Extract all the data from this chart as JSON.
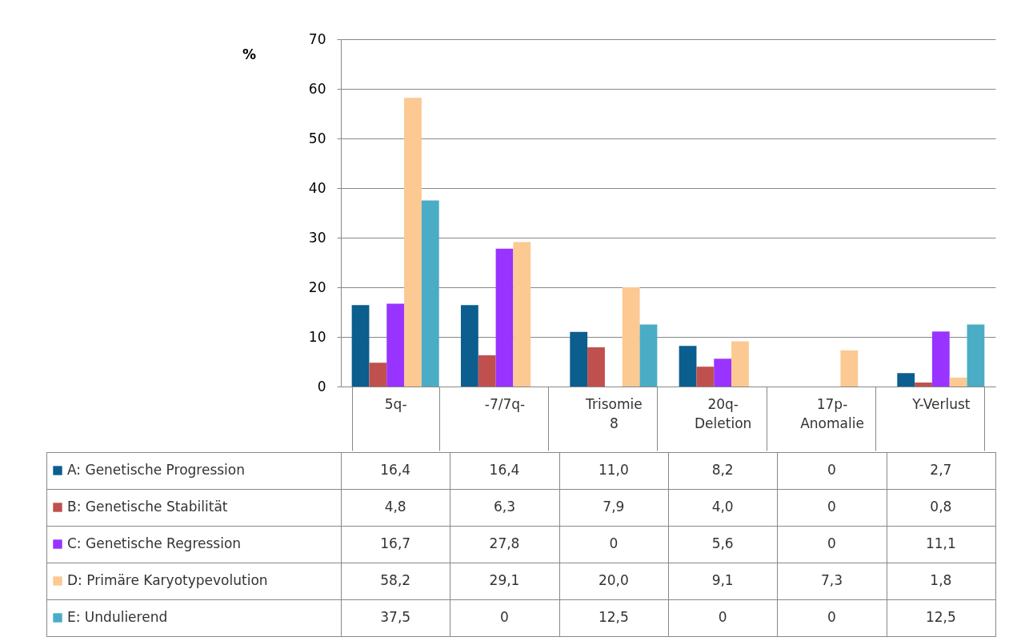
{
  "chart_data": {
    "type": "bar",
    "ylabel": "%",
    "categories": [
      "5q-",
      "-7/7q-",
      "Trisomie 8",
      "20q-Deletion",
      "17p-Anomalie",
      "Y-Verlust"
    ],
    "series": [
      {
        "name": "A: Genetische Progression",
        "color": "#0b5e8e",
        "values": [
          16.4,
          16.4,
          11.0,
          8.2,
          0,
          2.7
        ],
        "value_labels": [
          "16,4",
          "16,4",
          "11,0",
          "8,2",
          "0",
          "2,7"
        ]
      },
      {
        "name": "B: Genetische Stabilität",
        "color": "#c0504d",
        "values": [
          4.8,
          6.3,
          7.9,
          4.0,
          0,
          0.8
        ],
        "value_labels": [
          "4,8",
          "6,3",
          "7,9",
          "4,0",
          "0",
          "0,8"
        ]
      },
      {
        "name": "C: Genetische Regression",
        "color": "#9933ff",
        "values": [
          16.7,
          27.8,
          0,
          5.6,
          0,
          11.1
        ],
        "value_labels": [
          "16,7",
          "27,8",
          "0",
          "5,6",
          "0",
          "11,1"
        ]
      },
      {
        "name": "D: Primäre Karyotypevolution",
        "color": "#fcc992",
        "values": [
          58.2,
          29.1,
          20.0,
          9.1,
          7.3,
          1.8
        ],
        "value_labels": [
          "58,2",
          "29,1",
          "20,0",
          "9,1",
          "7,3",
          "1,8"
        ]
      },
      {
        "name": "E: Undulierend",
        "color": "#4bacc6",
        "values": [
          37.5,
          0,
          12.5,
          0,
          0,
          12.5
        ],
        "value_labels": [
          "37,5",
          "0",
          "12,5",
          "0",
          "0",
          "12,5"
        ]
      }
    ],
    "ylim": [
      0,
      70
    ],
    "yticks": [
      0,
      10,
      20,
      30,
      40,
      50,
      60,
      70
    ],
    "grid": "y",
    "legend": "bottom"
  }
}
